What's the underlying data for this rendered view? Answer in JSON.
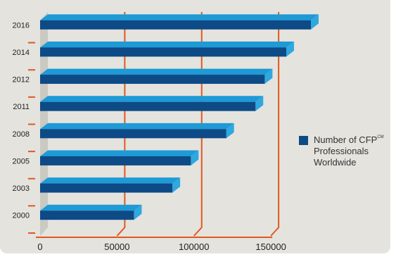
{
  "chart_data": {
    "type": "bar",
    "orientation": "horizontal",
    "categories": [
      "2000",
      "2003",
      "2005",
      "2008",
      "2011",
      "2012",
      "2014",
      "2016"
    ],
    "series": [
      {
        "name": "Number of CFP℠ Professionals Worldwide",
        "values": [
          61000,
          86000,
          98000,
          121000,
          140000,
          146000,
          160000,
          176000
        ]
      }
    ],
    "xlim": [
      0,
      176000
    ],
    "xticks": [
      "0",
      "50000",
      "100000",
      "150000"
    ],
    "grid": true,
    "legend_position": "right"
  },
  "legend": {
    "line1": "Number of CFP",
    "superscript": "CM",
    "line2": "Professionals",
    "line3": "Worldwide"
  },
  "colors": {
    "bar_front": "#0d4a86",
    "bar_top": "#1e9ad6",
    "bar_side": "#2fa8e0",
    "gridline": "#e2571f",
    "wall": "#cac9c2",
    "panel": "#e4e3de"
  }
}
